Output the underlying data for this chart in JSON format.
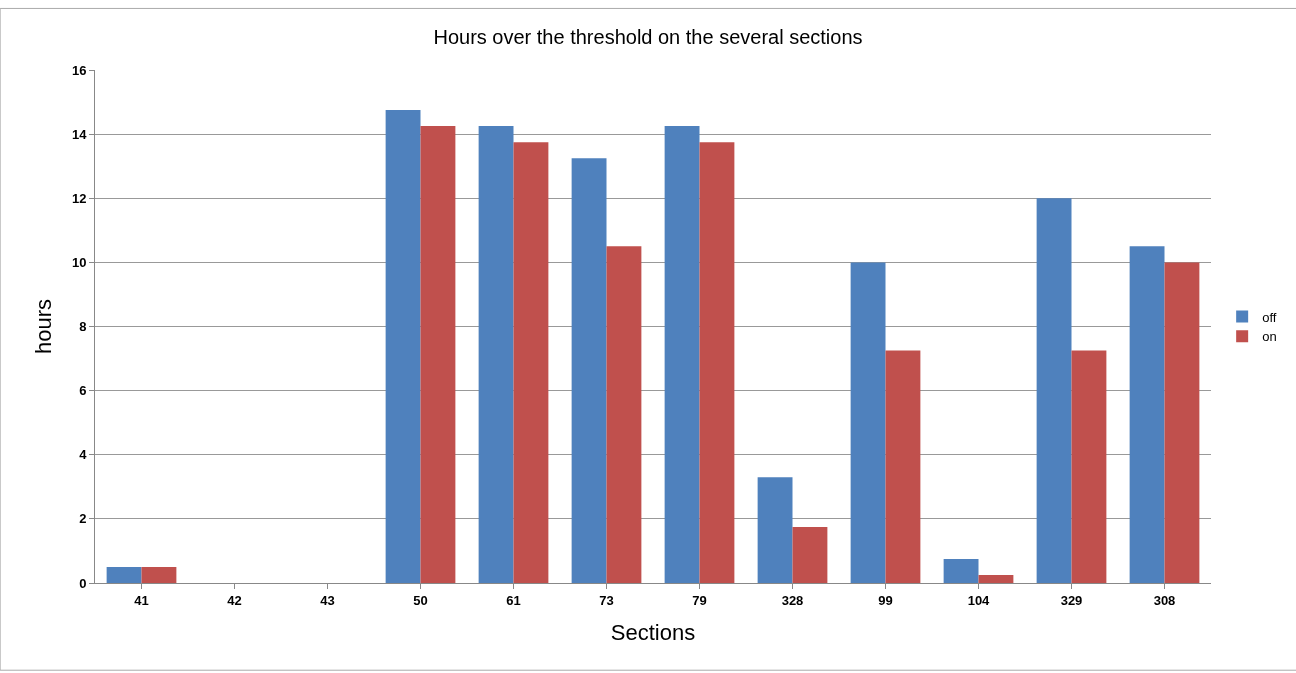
{
  "chart_data": {
    "type": "bar",
    "title": "Hours over the threshold on the several sections",
    "xlabel": "Sections",
    "ylabel": "hours",
    "categories": [
      "41",
      "42",
      "43",
      "50",
      "61",
      "73",
      "79",
      "328",
      "99",
      "104",
      "329",
      "308"
    ],
    "series": [
      {
        "name": "off",
        "color": "#4f81bd",
        "values": [
          0.5,
          0,
          0,
          14.75,
          14.25,
          13.25,
          14.25,
          3.3,
          10,
          0.75,
          12,
          10.5
        ]
      },
      {
        "name": "on",
        "color": "#c0504d",
        "values": [
          0.5,
          0,
          0,
          14.25,
          13.75,
          10.5,
          13.75,
          1.75,
          7.25,
          0.25,
          7.25,
          10
        ]
      }
    ],
    "ylim": [
      0,
      16
    ],
    "yticks": [
      0,
      2,
      4,
      6,
      8,
      10,
      12,
      14,
      16
    ],
    "grid": "y",
    "legend": "right"
  }
}
